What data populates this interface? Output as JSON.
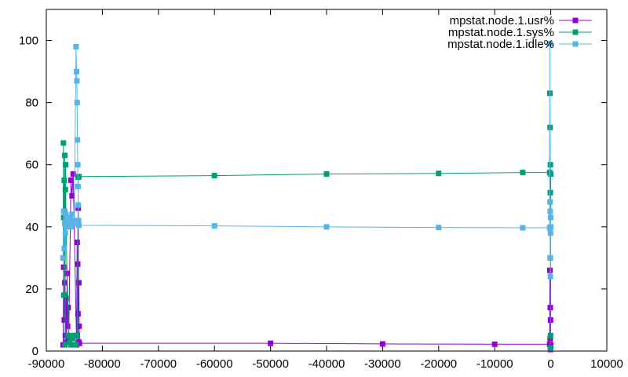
{
  "chart_data": {
    "type": "line",
    "title": "",
    "xlabel": "",
    "ylabel": "",
    "xlim": [
      -90000,
      10000
    ],
    "ylim": [
      0,
      110
    ],
    "grid": false,
    "legend_position": "top-right",
    "x_ticks": [
      -90000,
      -80000,
      -70000,
      -60000,
      -50000,
      -40000,
      -30000,
      -20000,
      -10000,
      0,
      10000
    ],
    "y_ticks": [
      0,
      20,
      40,
      60,
      80,
      100
    ],
    "series": [
      {
        "name": "mpstat.node.1.usr%",
        "color": "#9400d3",
        "points": [
          [
            -87000,
            2
          ],
          [
            -86900,
            27
          ],
          [
            -86800,
            10
          ],
          [
            -86700,
            22
          ],
          [
            -86600,
            5
          ],
          [
            -86500,
            17
          ],
          [
            -86400,
            3
          ],
          [
            -86300,
            25
          ],
          [
            -86200,
            8
          ],
          [
            -86100,
            14
          ],
          [
            -86000,
            4
          ],
          [
            -85600,
            55
          ],
          [
            -85400,
            50
          ],
          [
            -85200,
            57
          ],
          [
            -84600,
            2
          ],
          [
            -84500,
            35
          ],
          [
            -84450,
            5
          ],
          [
            -84400,
            28
          ],
          [
            -84350,
            12
          ],
          [
            -84300,
            46
          ],
          [
            -84250,
            3
          ],
          [
            -84200,
            22
          ],
          [
            -84150,
            8
          ],
          [
            -84100,
            2.5
          ],
          [
            -50000,
            2.5
          ],
          [
            -30000,
            2.3
          ],
          [
            -10000,
            2.2
          ],
          [
            -200,
            2.2
          ],
          [
            -150,
            26
          ],
          [
            -100,
            4
          ],
          [
            -80,
            14
          ],
          [
            -60,
            1
          ],
          [
            -40,
            10
          ],
          [
            -20,
            0.5
          ],
          [
            0,
            2
          ]
        ]
      },
      {
        "name": "mpstat.node.1.sys%",
        "color": "#009e73",
        "points": [
          [
            -87000,
            30
          ],
          [
            -86950,
            67
          ],
          [
            -86900,
            43
          ],
          [
            -86850,
            18
          ],
          [
            -86800,
            55
          ],
          [
            -86750,
            45
          ],
          [
            -86700,
            63
          ],
          [
            -86650,
            2
          ],
          [
            -86600,
            52
          ],
          [
            -86550,
            60
          ],
          [
            -86500,
            40
          ],
          [
            -86000,
            5
          ],
          [
            -85800,
            3
          ],
          [
            -85600,
            2
          ],
          [
            -85400,
            4
          ],
          [
            -85000,
            5
          ],
          [
            -84700,
            2
          ],
          [
            -84500,
            5
          ],
          [
            -84300,
            56
          ],
          [
            -84200,
            56.2
          ],
          [
            -60000,
            56.5
          ],
          [
            -40000,
            57
          ],
          [
            -20000,
            57.2
          ],
          [
            -5000,
            57.5
          ],
          [
            -200,
            57.5
          ],
          [
            -150,
            83
          ],
          [
            -120,
            72
          ],
          [
            -100,
            30
          ],
          [
            -80,
            51
          ],
          [
            -60,
            60
          ],
          [
            -40,
            5
          ],
          [
            -20,
            1
          ],
          [
            0,
            57
          ]
        ]
      },
      {
        "name": "mpstat.node.1.idle%",
        "color": "#56b4e9",
        "points": [
          [
            -87000,
            30
          ],
          [
            -86900,
            45
          ],
          [
            -86800,
            33
          ],
          [
            -86700,
            41
          ],
          [
            -86600,
            38
          ],
          [
            -86500,
            44
          ],
          [
            -86400,
            42
          ],
          [
            -86300,
            40
          ],
          [
            -86000,
            41
          ],
          [
            -85800,
            43
          ],
          [
            -85600,
            40
          ],
          [
            -85400,
            44
          ],
          [
            -85200,
            41
          ],
          [
            -85000,
            42
          ],
          [
            -84700,
            98
          ],
          [
            -84600,
            90
          ],
          [
            -84550,
            87
          ],
          [
            -84500,
            80
          ],
          [
            -84450,
            68
          ],
          [
            -84400,
            60
          ],
          [
            -84350,
            53
          ],
          [
            -84300,
            47
          ],
          [
            -84250,
            42
          ],
          [
            -84200,
            40.5
          ],
          [
            -60000,
            40.3
          ],
          [
            -40000,
            40
          ],
          [
            -20000,
            39.8
          ],
          [
            -5000,
            39.7
          ],
          [
            -200,
            39.7
          ],
          [
            -150,
            99
          ],
          [
            -120,
            48
          ],
          [
            -100,
            45
          ],
          [
            -80,
            30
          ],
          [
            -60,
            24
          ],
          [
            -40,
            38
          ],
          [
            -20,
            43
          ],
          [
            0,
            40
          ]
        ]
      }
    ]
  }
}
